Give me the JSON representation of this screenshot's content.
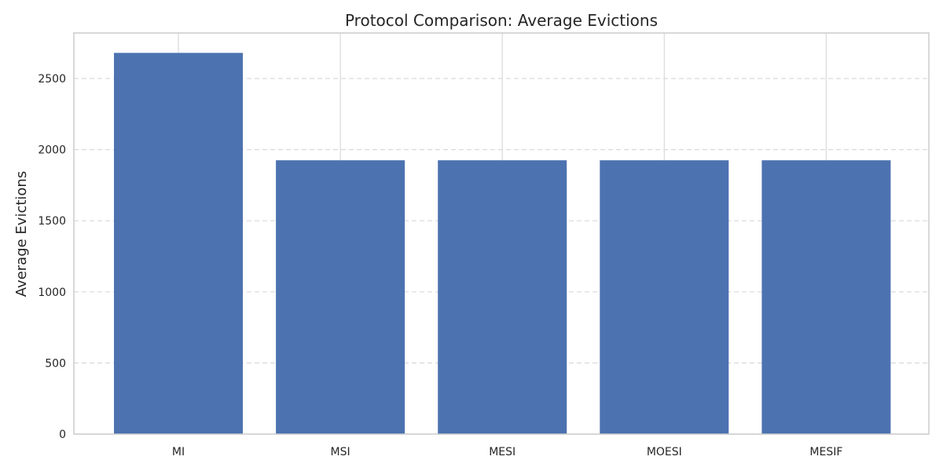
{
  "chart_data": {
    "type": "bar",
    "title": "Protocol Comparison: Average Evictions",
    "xlabel": "",
    "ylabel": "Average Evictions",
    "categories": [
      "MI",
      "MSI",
      "MESI",
      "MOESI",
      "MESIF"
    ],
    "values": [
      2680,
      1925,
      1925,
      1925,
      1925
    ],
    "ylim": [
      0,
      2820
    ],
    "yticks": [
      0,
      500,
      1000,
      1500,
      2000,
      2500
    ],
    "grid": {
      "y": true,
      "y_style": "dashed",
      "x": true,
      "x_style": "solid"
    },
    "legend": "none"
  },
  "colors": {
    "bar": "#4c72b0",
    "grid": "#d9d9d9",
    "axes": "#cccccc",
    "text": "#262626"
  }
}
